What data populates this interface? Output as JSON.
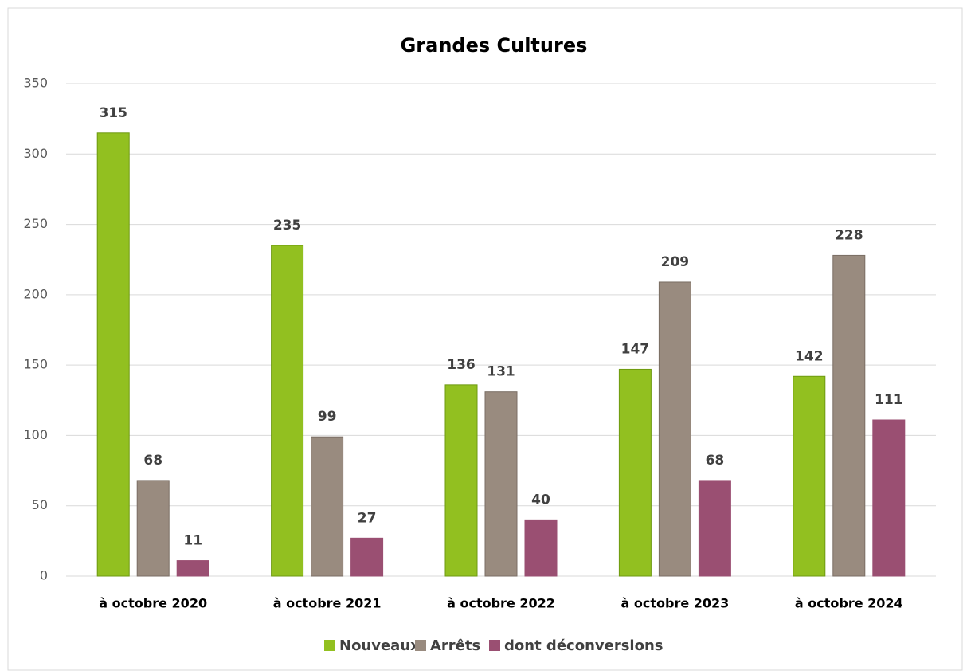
{
  "chart_data": {
    "type": "bar",
    "title": "Grandes Cultures",
    "categories": [
      "à octobre 2020",
      "à octobre 2021",
      "à octobre 2022",
      "à octobre 2023",
      "à octobre 2024"
    ],
    "series": [
      {
        "name": "Nouveaux",
        "color": "#92c020",
        "values": [
          315,
          235,
          136,
          147,
          142
        ]
      },
      {
        "name": "Arrêts",
        "color": "#998b7f",
        "values": [
          68,
          99,
          131,
          209,
          228
        ]
      },
      {
        "name": "dont déconversions",
        "color": "#9a4f72",
        "values": [
          11,
          27,
          40,
          68,
          111
        ]
      }
    ],
    "ylim": [
      0,
      350
    ],
    "yticks": [
      0,
      50,
      100,
      150,
      200,
      250,
      300,
      350
    ],
    "grid": true,
    "legend": "bottom"
  }
}
